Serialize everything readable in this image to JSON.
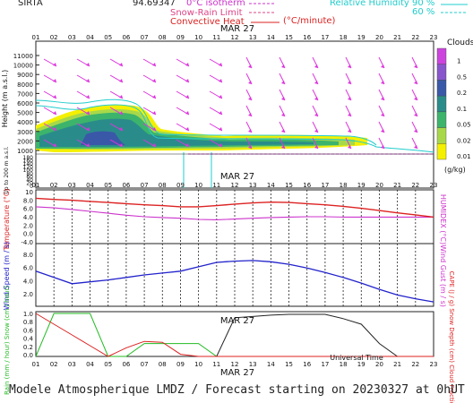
{
  "header": {
    "site": "SIRTA",
    "coords": "94.69347",
    "legend_isotherm": "0°C isotherm",
    "legend_snowrain": "Snow-Rain Limit",
    "legend_convective": "Convective Heat",
    "legend_convective_unit": "(°C/minute)",
    "legend_rh": "Relative Humidity",
    "rh_90": "90 %",
    "rh_60": "60 %"
  },
  "hours": [
    "01",
    "02",
    "03",
    "04",
    "05",
    "06",
    "07",
    "08",
    "09",
    "10",
    "11",
    "12",
    "13",
    "14",
    "15",
    "16",
    "17",
    "18",
    "19",
    "20",
    "21",
    "22",
    "23"
  ],
  "date_label": "MAR 27",
  "footer": "Modele Atmospherique LMDZ / Forecast starting on 20230327 at 0hUT",
  "universal_time": "Universal Time",
  "colors": {
    "temperature": "#dd2222",
    "humidex": "#cc33cc",
    "wind": "#2222cc",
    "rain": "#dd2222",
    "snow": "#22bb22",
    "cloud_frac": "#222222",
    "wind_arrow": "#dd33dd",
    "rh": "#22cccc"
  },
  "cloud_panel": {
    "ylabel": "Height (m a.s.l.)",
    "ylabel_low": "Up to 200 m a.s.l.",
    "y_ticks_upper": [
      "11000",
      "10000",
      "9000",
      "8000",
      "7000",
      "6000",
      "5000",
      "4000",
      "3000",
      "2000",
      "1000"
    ],
    "y_ticks_lower": [
      "180",
      "160",
      "140",
      "120",
      "100",
      "80",
      "60",
      "40",
      "20",
      "0"
    ],
    "legend_title": "Clouds",
    "legend_unit": "(g/kg)",
    "legend_levels": [
      "1",
      "0.5",
      "0.2",
      "0.1",
      "0.05",
      "0.02",
      "0.01"
    ],
    "legend_colors": [
      "#cc44dd",
      "#8855cc",
      "#3a58a8",
      "#2a8c8a",
      "#3cb46c",
      "#a8d84a",
      "#f4f000"
    ]
  },
  "chart_data": [
    {
      "type": "line",
      "title": "",
      "xlabel": "",
      "ylabel": "Temperature (°C)",
      "y2label": "HUMIDEX (°C)",
      "x": [
        "01",
        "02",
        "03",
        "04",
        "05",
        "06",
        "07",
        "08",
        "09",
        "10",
        "11",
        "12",
        "13",
        "14",
        "15",
        "16",
        "17",
        "18",
        "19",
        "20",
        "21",
        "22",
        "23"
      ],
      "ylim": [
        -4,
        10
      ],
      "y_ticks": [
        "10",
        "8.0",
        "6.0",
        "4.0",
        "2.0",
        "0.0",
        "-4.0"
      ],
      "series": [
        {
          "name": "Temperature",
          "values": [
            7.8,
            7.5,
            7.3,
            7.0,
            6.7,
            6.4,
            6.1,
            5.9,
            5.6,
            5.6,
            5.9,
            6.3,
            6.6,
            6.8,
            6.7,
            6.4,
            6.1,
            5.7,
            5.2,
            4.6,
            4.0,
            3.5,
            2.9
          ]
        },
        {
          "name": "HUMIDEX",
          "values": [
            5.6,
            5.3,
            4.9,
            4.4,
            3.9,
            3.4,
            3.0,
            2.8,
            2.6,
            2.3,
            2.2,
            2.4,
            2.6,
            2.8,
            2.9,
            3.0,
            3.0,
            2.9,
            2.9,
            2.9,
            2.9,
            2.9,
            2.9
          ]
        }
      ]
    },
    {
      "type": "line",
      "title": "",
      "ylabel": "Wind Speed (m / s)",
      "y2label": "Wind Gust (m / s)",
      "x": [
        "01",
        "02",
        "03",
        "04",
        "05",
        "06",
        "07",
        "08",
        "09",
        "10",
        "11",
        "12",
        "13",
        "14",
        "15",
        "16",
        "17",
        "18",
        "19",
        "20",
        "21",
        "22",
        "23"
      ],
      "ylim": [
        0,
        10
      ],
      "y_ticks": [
        "8.0",
        "6.0",
        "4.0",
        "2.0"
      ],
      "series": [
        {
          "name": "Wind Speed",
          "values": [
            5.6,
            4.6,
            3.6,
            3.9,
            4.2,
            4.6,
            5.0,
            5.3,
            5.6,
            6.3,
            7.0,
            7.2,
            7.3,
            7.1,
            6.7,
            6.1,
            5.4,
            4.6,
            3.7,
            2.7,
            1.8,
            1.2,
            0.7
          ]
        }
      ]
    },
    {
      "type": "line",
      "title": "",
      "ylabel": "Rain (mm / hour) Snow (cm / hour)",
      "y2label": "CAPE (J / g) Snow Depth (cm) Cloud Fraction",
      "x": [
        "01",
        "02",
        "03",
        "04",
        "05",
        "06",
        "07",
        "08",
        "09",
        "10",
        "11",
        "12",
        "13",
        "14",
        "15",
        "16",
        "17",
        "18",
        "19",
        "20",
        "21",
        "22",
        "23"
      ],
      "ylim": [
        0,
        1
      ],
      "y_ticks": [
        "1.0",
        "0.8",
        "0.6",
        "0.4",
        "0.2",
        "0.0"
      ],
      "series": [
        {
          "name": "Rain",
          "values": [
            1.0,
            0.75,
            0.5,
            0.25,
            0.0,
            0.2,
            0.35,
            0.33,
            0.05,
            0.0,
            0,
            0,
            0,
            0,
            0,
            0,
            0,
            0,
            0,
            0,
            0,
            0,
            0
          ]
        },
        {
          "name": "Snow",
          "values": [
            0,
            1.0,
            1.0,
            1.0,
            0,
            0,
            0.3,
            0.3,
            0.3,
            0.3,
            0,
            0,
            0,
            0,
            0,
            0,
            0,
            0,
            0,
            0,
            0,
            0,
            0
          ]
        },
        {
          "name": "Cloud Fraction",
          "values": [
            0,
            0,
            0,
            0,
            0,
            0,
            0,
            0,
            0,
            0,
            0,
            0.9,
            0.93,
            0.96,
            0.98,
            0.98,
            0.98,
            0.88,
            0.75,
            0.3,
            0,
            0,
            0
          ]
        }
      ]
    }
  ]
}
